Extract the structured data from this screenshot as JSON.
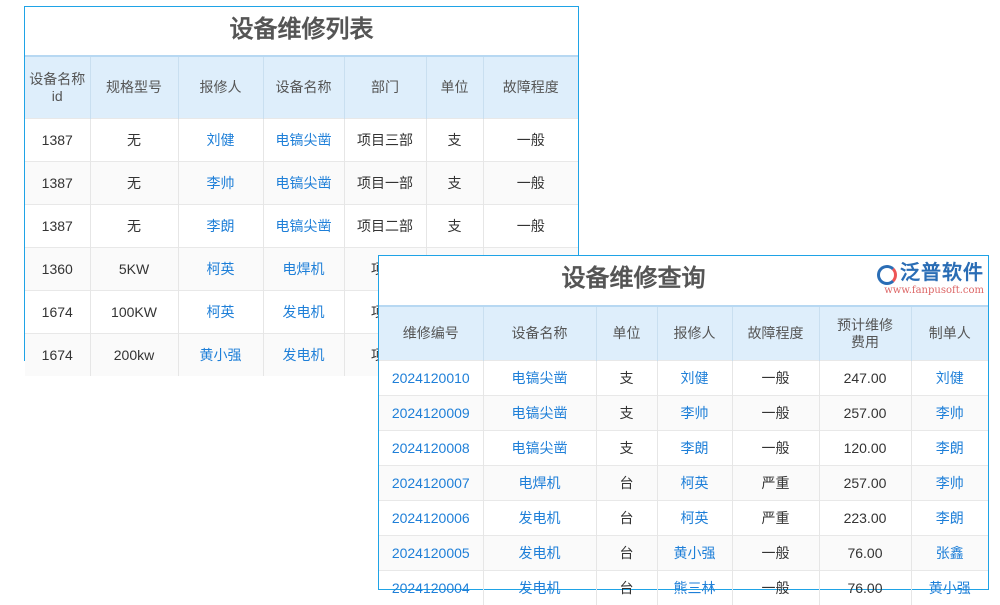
{
  "list": {
    "title": "设备维修列表",
    "headers": [
      "设备名称id",
      "规格型号",
      "报修人",
      "设备名称",
      "部门",
      "单位",
      "故障程度"
    ],
    "rows": [
      [
        "1387",
        "无",
        "刘健",
        "电镐尖凿",
        "项目三部",
        "支",
        "一般"
      ],
      [
        "1387",
        "无",
        "李帅",
        "电镐尖凿",
        "项目一部",
        "支",
        "一般"
      ],
      [
        "1387",
        "无",
        "李朗",
        "电镐尖凿",
        "项目二部",
        "支",
        "一般"
      ],
      [
        "1360",
        "5KW",
        "柯英",
        "电焊机",
        "项目",
        "",
        ""
      ],
      [
        "1674",
        "100KW",
        "柯英",
        "发电机",
        "项目",
        "",
        ""
      ],
      [
        "1674",
        "200kw",
        "黄小强",
        "发电机",
        "项目",
        "",
        ""
      ]
    ]
  },
  "query": {
    "title": "设备维修查询",
    "headers": [
      "维修编号",
      "设备名称",
      "单位",
      "报修人",
      "故障程度",
      "预计维修费用",
      "制单人"
    ],
    "rows": [
      [
        "2024120010",
        "电镐尖凿",
        "支",
        "刘健",
        "一般",
        "247.00",
        "刘健"
      ],
      [
        "2024120009",
        "电镐尖凿",
        "支",
        "李帅",
        "一般",
        "257.00",
        "李帅"
      ],
      [
        "2024120008",
        "电镐尖凿",
        "支",
        "李朗",
        "一般",
        "120.00",
        "李朗"
      ],
      [
        "2024120007",
        "电焊机",
        "台",
        "柯英",
        "严重",
        "257.00",
        "李帅"
      ],
      [
        "2024120006",
        "发电机",
        "台",
        "柯英",
        "严重",
        "223.00",
        "李朗"
      ],
      [
        "2024120005",
        "发电机",
        "台",
        "黄小强",
        "一般",
        "76.00",
        "张鑫"
      ],
      [
        "2024120004",
        "发电机",
        "台",
        "熊三林",
        "一般",
        "76.00",
        "黄小强"
      ]
    ]
  },
  "logo": {
    "name": "泛普软件",
    "url": "www.fanpusoft.com"
  },
  "colors": {
    "border": "#1fa3e6",
    "header_bg": "#deeefb",
    "link": "#1e7fd8"
  }
}
